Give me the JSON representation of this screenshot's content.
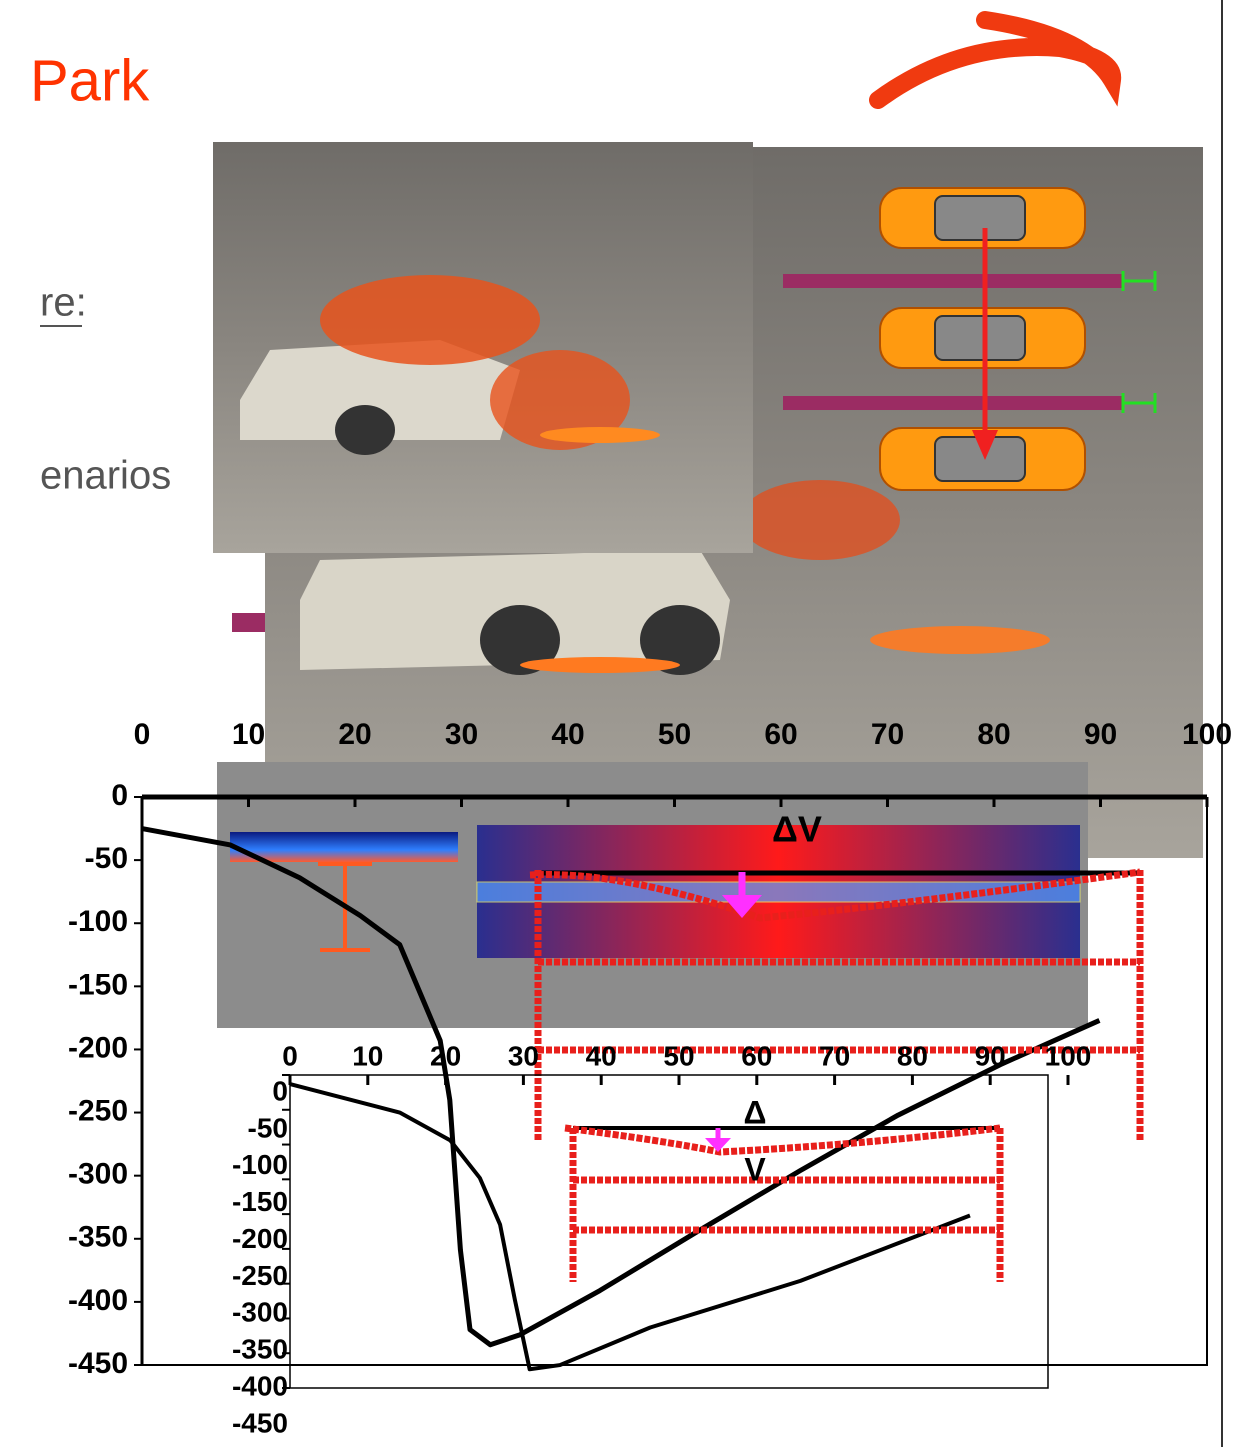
{
  "slide": {
    "title": "Park",
    "fragments": [
      "re:",
      "enarios"
    ],
    "annotations": [
      "ΔV",
      "Δ",
      "V"
    ]
  },
  "chart_data": [
    {
      "type": "line",
      "x": [
        0,
        8.3,
        14.8,
        20.5,
        24.2,
        26,
        28,
        28.9,
        29.9,
        30.8,
        32.7,
        35.5,
        43,
        52.4,
        61.8,
        71,
        80.6,
        89.9
      ],
      "values": [
        -25,
        -38,
        -64,
        -94,
        -117,
        -153,
        -193,
        -240,
        -359,
        -422,
        -434,
        -426,
        -391,
        -343,
        -296,
        -252,
        -212,
        -177
      ],
      "color": "#000000",
      "xlim": [
        0,
        100
      ],
      "ylim": [
        -450,
        0
      ],
      "xticks": [
        0,
        10,
        20,
        30,
        40,
        50,
        60,
        70,
        80,
        90,
        100
      ],
      "yticks": [
        0,
        -50,
        -100,
        -150,
        -200,
        -250,
        -300,
        -350,
        -400,
        -450
      ]
    },
    {
      "type": "line",
      "x": [
        0,
        14.1,
        20.6,
        24.4,
        27,
        28.9,
        30.8,
        34.7,
        46.3,
        65.6,
        87.4
      ],
      "values": [
        -13,
        -54,
        -94,
        -148,
        -215,
        -323,
        -423,
        -417,
        -363,
        -296,
        -202
      ],
      "color": "#000000",
      "xlim": [
        0,
        100
      ],
      "ylim": [
        -450,
        0
      ],
      "xticks": [
        0,
        10,
        20,
        30,
        40,
        50,
        60,
        70,
        80,
        90,
        100
      ],
      "yticks": [
        0,
        -50,
        -100,
        -150,
        -200,
        -250,
        -300,
        -350,
        -400,
        -450
      ]
    }
  ]
}
